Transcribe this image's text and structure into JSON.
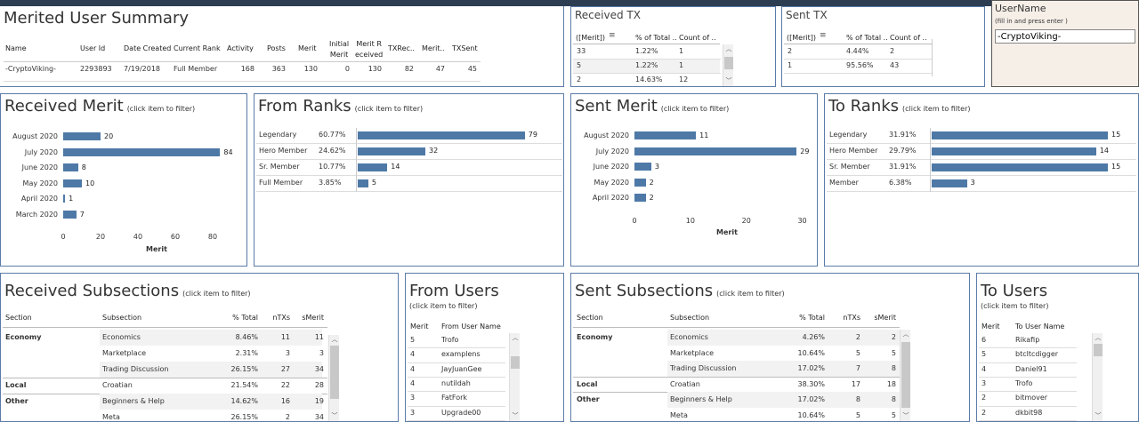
{
  "summary": {
    "title": "Merited User Summary",
    "headers": [
      "Name",
      "User Id",
      "Date Created",
      "Current Rank",
      "Activity",
      "Posts",
      "Merit",
      "Initial Merit",
      "Merit Received",
      "TXRec..",
      "Merit..",
      "TXSent"
    ],
    "h_initial": [
      "Initial",
      "Merit"
    ],
    "h_meritr": [
      "Merit R",
      "eceived"
    ],
    "row": [
      "-CryptoViking-",
      "2293893",
      "7/19/2018",
      "Full Member",
      "168",
      "363",
      "130",
      "0",
      "130",
      "82",
      "47",
      "45"
    ]
  },
  "received_tx": {
    "title": "Received TX",
    "headers": [
      "([Merit])",
      "% of Total ..",
      "Count of .."
    ],
    "rows": [
      [
        "33",
        "1.22%",
        "1"
      ],
      [
        "5",
        "1.22%",
        "1"
      ],
      [
        "2",
        "14.63%",
        "12"
      ]
    ]
  },
  "sent_tx": {
    "title": "Sent TX",
    "headers": [
      "([Merit])",
      "% of Total ..",
      "Count of .."
    ],
    "rows": [
      [
        "2",
        "4.44%",
        "2"
      ],
      [
        "1",
        "95.56%",
        "43"
      ]
    ]
  },
  "username": {
    "title": "UserName",
    "hint": "(fill in and press enter )",
    "value": "-CryptoViking-"
  },
  "received_merit": {
    "title": "Received Merit",
    "hint": "(click item to filter)",
    "xlabel": "Merit",
    "ticks": [
      "0",
      "20",
      "40",
      "60",
      "80"
    ]
  },
  "from_ranks": {
    "title": "From Ranks",
    "hint": "(click item to filter)",
    "rows": [
      [
        "Legendary",
        "60.77%"
      ],
      [
        "Hero Member",
        "24.62%"
      ],
      [
        "Sr. Member",
        "10.77%"
      ],
      [
        "Full Member",
        "3.85%"
      ]
    ]
  },
  "sent_merit": {
    "title": "Sent Merit",
    "hint": "(click item to filter)",
    "xlabel": "Merit",
    "ticks": [
      "0",
      "10",
      "20",
      "30"
    ]
  },
  "to_ranks": {
    "title": "To Ranks",
    "hint": "(click item to filter)",
    "rows": [
      [
        "Legendary",
        "31.91%"
      ],
      [
        "Hero Member",
        "29.79%"
      ],
      [
        "Sr. Member",
        "31.91%"
      ],
      [
        "Member",
        "6.38%"
      ]
    ]
  },
  "received_subsections": {
    "title": "Received Subsections",
    "hint": "(click item to filter)",
    "headers": [
      "Section",
      "Subsection",
      "% Total",
      "nTXs",
      "sMerit"
    ],
    "rows": [
      [
        "Economy",
        "Economics",
        "8.46%",
        "11",
        "11"
      ],
      [
        "",
        "Marketplace",
        "2.31%",
        "3",
        "3"
      ],
      [
        "",
        "Trading Discussion",
        "26.15%",
        "27",
        "34"
      ],
      [
        "Local",
        "Croatian",
        "21.54%",
        "22",
        "28"
      ],
      [
        "Other",
        "Beginners & Help",
        "14.62%",
        "16",
        "19"
      ],
      [
        "",
        "Meta",
        "26.15%",
        "2",
        "34"
      ]
    ]
  },
  "from_users": {
    "title": "From Users",
    "hint": "(click item to filter)",
    "headers": [
      "Merit",
      "From User Name"
    ],
    "rows": [
      [
        "5",
        "Trofo"
      ],
      [
        "4",
        "examplens"
      ],
      [
        "4",
        "JayJuanGee"
      ],
      [
        "4",
        "nutildah"
      ],
      [
        "3",
        "FatFork"
      ],
      [
        "3",
        "Upgrade00"
      ]
    ]
  },
  "sent_subsections": {
    "title": "Sent Subsections",
    "hint": "(click item to filter)",
    "headers": [
      "Section",
      "Subsection",
      "% Total",
      "nTXs",
      "sMerit"
    ],
    "rows": [
      [
        "Economy",
        "Economics",
        "4.26%",
        "2",
        "2"
      ],
      [
        "",
        "Marketplace",
        "10.64%",
        "5",
        "5"
      ],
      [
        "",
        "Trading Discussion",
        "17.02%",
        "7",
        "8"
      ],
      [
        "Local",
        "Croatian",
        "38.30%",
        "17",
        "18"
      ],
      [
        "Other",
        "Beginners & Help",
        "17.02%",
        "8",
        "8"
      ],
      [
        "",
        "Meta",
        "10.64%",
        "5",
        "5"
      ]
    ]
  },
  "to_users": {
    "title": "To Users",
    "hint": "(click item to filter)",
    "headers": [
      "Merit",
      "To User Name"
    ],
    "rows": [
      [
        "6",
        "Rikafip"
      ],
      [
        "5",
        "btcltcdigger"
      ],
      [
        "4",
        "Daniel91"
      ],
      [
        "3",
        "Trofo"
      ],
      [
        "2",
        "bitmover"
      ],
      [
        "2",
        "dkbit98"
      ]
    ]
  },
  "chart_data": [
    {
      "type": "bar",
      "title": "Received Merit",
      "xlabel": "Merit",
      "categories": [
        "August 2020",
        "July 2020",
        "June 2020",
        "May 2020",
        "April 2020",
        "March 2020"
      ],
      "values": [
        20,
        84,
        8,
        10,
        1,
        7
      ],
      "xlim": [
        0,
        90
      ]
    },
    {
      "type": "bar",
      "title": "From Ranks",
      "categories": [
        "Legendary",
        "Hero Member",
        "Sr. Member",
        "Full Member"
      ],
      "values": [
        79,
        32,
        14,
        5
      ]
    },
    {
      "type": "bar",
      "title": "Sent Merit",
      "xlabel": "Merit",
      "categories": [
        "August 2020",
        "July 2020",
        "June 2020",
        "May 2020",
        "April 2020"
      ],
      "values": [
        11,
        29,
        3,
        2,
        2
      ],
      "xlim": [
        0,
        32
      ]
    },
    {
      "type": "bar",
      "title": "To Ranks",
      "categories": [
        "Legendary",
        "Hero Member",
        "Sr. Member",
        "Member"
      ],
      "values": [
        15,
        14,
        15,
        3
      ]
    }
  ]
}
